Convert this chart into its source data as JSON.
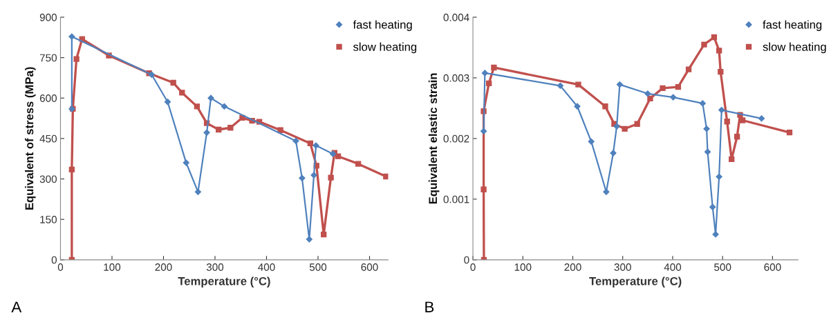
{
  "chart_data": [
    {
      "type": "line",
      "xlabel": "Temperature (°C)",
      "ylabel": "Equivalent of stress (MPa)",
      "xlim": [
        0,
        636
      ],
      "xticks": [
        0,
        100,
        200,
        300,
        400,
        500,
        600
      ],
      "ylim": [
        0,
        900
      ],
      "yticks": [
        0,
        150,
        300,
        450,
        600,
        750,
        900
      ],
      "grid": false,
      "legend": "top right",
      "annotations": [
        "A"
      ],
      "series": [
        {
          "name": "fast heating",
          "color": "#4f81bd",
          "marker": "diamond",
          "x": [
            22,
            22,
            177,
            208,
            244,
            267,
            284,
            292,
            318,
            457,
            469,
            483,
            492,
            496,
            529
          ],
          "values": [
            560,
            828,
            687,
            586,
            360,
            252,
            472,
            600,
            569,
            441,
            303,
            76,
            314,
            424,
            393
          ]
        },
        {
          "name": "slow heating",
          "color": "#c0504d",
          "marker": "square",
          "x": [
            22,
            22,
            24,
            31,
            42,
            94,
            172,
            219,
            236,
            265,
            284,
            307,
            330,
            353,
            372,
            386,
            427,
            485,
            497,
            511,
            525,
            532,
            539,
            578,
            632
          ],
          "values": [
            0,
            335,
            560,
            745,
            819,
            758,
            692,
            657,
            620,
            569,
            507,
            483,
            490,
            527,
            516,
            512,
            481,
            432,
            349,
            94,
            305,
            397,
            384,
            356,
            309
          ]
        }
      ]
    },
    {
      "type": "line",
      "xlabel": "Temperature (°C)",
      "ylabel": "Equivalent elastic strain",
      "xlim": [
        0,
        651
      ],
      "xticks": [
        0,
        100,
        200,
        300,
        400,
        500,
        600
      ],
      "ylim": [
        0,
        0.004
      ],
      "yticks": [
        0,
        0.001,
        0.002,
        0.003,
        0.004
      ],
      "grid": false,
      "legend": "top right",
      "annotations": [
        "B"
      ],
      "series": [
        {
          "name": "fast heating",
          "color": "#4f81bd",
          "marker": "diamond",
          "x": [
            21.5,
            24,
            175,
            209,
            237,
            267,
            281,
            288,
            294,
            350,
            401,
            460,
            468,
            470,
            480,
            486,
            493,
            498,
            578
          ],
          "values": [
            0.00212,
            0.00308,
            0.00287,
            0.00253,
            0.00195,
            0.00112,
            0.00176,
            0.0022,
            0.00289,
            0.00274,
            0.00268,
            0.00258,
            0.00216,
            0.00178,
            0.00087,
            0.00042,
            0.00137,
            0.00247,
            0.00233
          ]
        },
        {
          "name": "slow heating",
          "color": "#c0504d",
          "marker": "square",
          "x": [
            22,
            21.5,
            21.5,
            32,
            42,
            211,
            265,
            283,
            304,
            329,
            355,
            380,
            411,
            432,
            463,
            483,
            493,
            496,
            509,
            518,
            529,
            535,
            540,
            634
          ],
          "values": [
            0,
            0.00116,
            0.00245,
            0.00291,
            0.00317,
            0.00289,
            0.00253,
            0.00224,
            0.00216,
            0.00224,
            0.00266,
            0.00283,
            0.00285,
            0.00314,
            0.00355,
            0.00367,
            0.00345,
            0.0031,
            0.00228,
            0.00166,
            0.00203,
            0.00239,
            0.0023,
            0.0021
          ]
        }
      ]
    }
  ]
}
